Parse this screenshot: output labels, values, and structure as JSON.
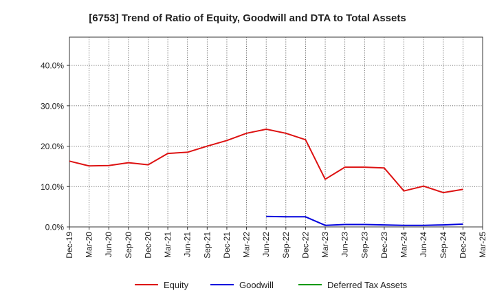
{
  "chart_data": {
    "type": "line",
    "title": "[6753]  Trend of Ratio of Equity, Goodwill and DTA to Total Assets",
    "xlabel": "",
    "ylabel": "",
    "x_tick_labels": [
      "Dec-19",
      "Mar-20",
      "Jun-20",
      "Sep-20",
      "Dec-20",
      "Mar-21",
      "Jun-21",
      "Sep-21",
      "Dec-21",
      "Mar-22",
      "Jun-22",
      "Sep-22",
      "Dec-22",
      "Mar-23",
      "Jun-23",
      "Sep-23",
      "Dec-23",
      "Mar-24",
      "Jun-24",
      "Sep-24",
      "Dec-24",
      "Mar-25"
    ],
    "y_ticks": [
      0,
      10,
      20,
      30,
      40
    ],
    "y_tick_labels": [
      "0.0%",
      "10.0%",
      "20.0%",
      "30.0%",
      "40.0%"
    ],
    "ylim": [
      0,
      47
    ],
    "grid": true,
    "legend_position": "bottom",
    "series": [
      {
        "name": "Equity",
        "color": "#dd1111",
        "values": [
          16.3,
          15.1,
          15.2,
          15.9,
          15.4,
          18.2,
          18.5,
          20.0,
          21.4,
          23.2,
          24.2,
          23.2,
          21.6,
          11.8,
          14.8,
          14.8,
          14.6,
          8.9,
          10.1,
          8.5,
          9.3,
          null
        ]
      },
      {
        "name": "Goodwill",
        "color": "#0000dd",
        "values": [
          null,
          null,
          null,
          null,
          null,
          null,
          null,
          null,
          null,
          null,
          2.6,
          2.5,
          2.5,
          0.4,
          0.6,
          0.6,
          0.5,
          0.4,
          0.4,
          0.5,
          0.7,
          null
        ]
      },
      {
        "name": "Deferred Tax Assets",
        "color": "#119911",
        "values": [
          null,
          null,
          null,
          null,
          null,
          null,
          null,
          null,
          null,
          null,
          null,
          null,
          null,
          null,
          null,
          null,
          null,
          null,
          null,
          null,
          null,
          null
        ]
      }
    ]
  }
}
